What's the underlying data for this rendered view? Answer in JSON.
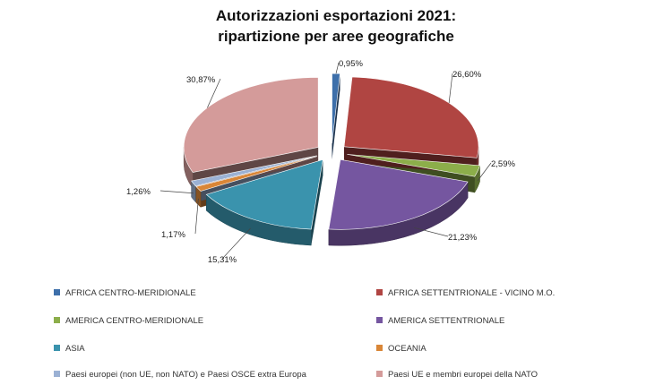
{
  "chart_data": {
    "type": "pie",
    "title": [
      "Autorizzazioni esportazioni 2021:",
      "ripartizione per aree geografiche"
    ],
    "legend_placement": "bottom",
    "series": [
      {
        "values": [
          0.95,
          26.6,
          2.59,
          21.23,
          15.31,
          1.17,
          1.26,
          30.87
        ],
        "labels": [
          "0,95%",
          "26,60%",
          "2,59%",
          "21,23%",
          "15,31%",
          "1,17%",
          "1,26%",
          "30,87%"
        ]
      }
    ],
    "categories": [
      "AFRICA CENTRO-MERIDIONALE",
      "AFRICA SETTENTRIONALE - VICINO M.O.",
      "AMERICA CENTRO-MERIDIONALE",
      "AMERICA SETTENTRIONALE",
      "ASIA",
      "OCEANIA",
      "Paesi europei (non UE, non NATO) e Paesi OSCE extra Europa",
      "Paesi UE e membri europei della NATO"
    ],
    "colors": [
      "#3d6faa",
      "#b04542",
      "#8cae4a",
      "#7556a0",
      "#3a93ad",
      "#d98637",
      "#9bb1d4",
      "#d49b9a"
    ]
  }
}
